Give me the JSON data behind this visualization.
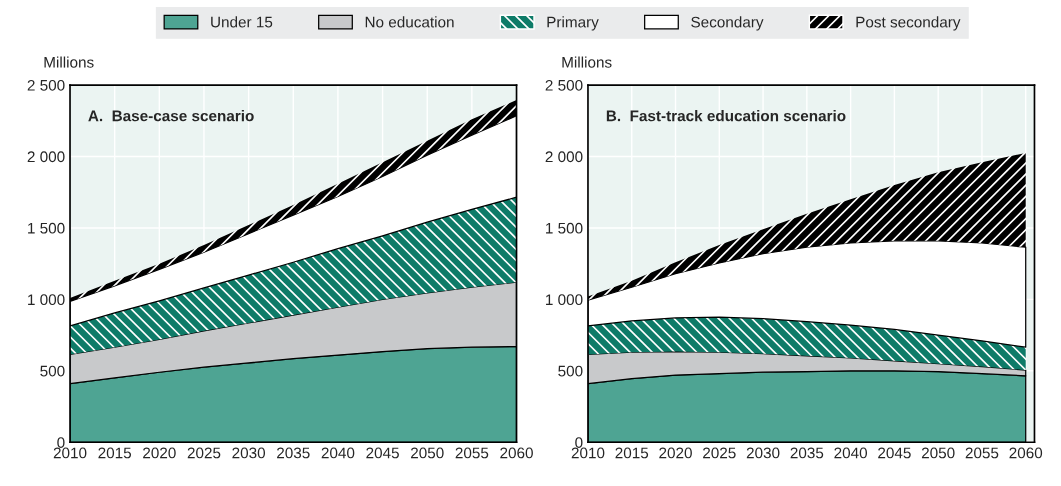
{
  "chart_data": [
    {
      "type": "area",
      "stacked": true,
      "title": "A.  Base-case scenario",
      "ylabel": "Millions",
      "legend": "top",
      "grid": true,
      "x": [
        2010,
        2015,
        2020,
        2025,
        2030,
        2035,
        2040,
        2045,
        2050,
        2055,
        2060
      ],
      "xlim": [
        2010,
        2060
      ],
      "xticks": [
        2010,
        2015,
        2020,
        2025,
        2030,
        2035,
        2040,
        2045,
        2050,
        2055,
        2060
      ],
      "ylim": [
        0,
        2500
      ],
      "yticks": [
        0,
        500,
        {
          "value": 1000,
          "label": "1 000"
        },
        {
          "value": 1500,
          "label": "1 500"
        },
        {
          "value": 2000,
          "label": "2 000"
        },
        {
          "value": 2500,
          "label": "2 500"
        }
      ],
      "series": [
        {
          "name": "Under 15",
          "color": "#4ea493",
          "values": [
            410,
            450,
            490,
            525,
            555,
            585,
            610,
            635,
            655,
            665,
            670
          ]
        },
        {
          "name": "No education",
          "color": "#c8c9cb",
          "values": [
            205,
            215,
            230,
            255,
            280,
            305,
            335,
            365,
            390,
            420,
            450
          ]
        },
        {
          "name": "Primary",
          "color": "#0e7b68",
          "values": [
            200,
            240,
            270,
            300,
            335,
            370,
            410,
            445,
            495,
            545,
            595
          ]
        },
        {
          "name": "Secondary",
          "color": "#ffffff",
          "values": [
            170,
            190,
            220,
            250,
            290,
            330,
            365,
            415,
            470,
            520,
            570
          ]
        },
        {
          "name": "Post secondary",
          "color": "#000000",
          "values": [
            25,
            35,
            40,
            50,
            60,
            70,
            90,
            100,
            100,
            110,
            110
          ]
        }
      ]
    },
    {
      "type": "area",
      "stacked": true,
      "title": "B.  Fast-track education scenario",
      "ylabel": "Millions",
      "grid": true,
      "x": [
        2010,
        2015,
        2020,
        2025,
        2030,
        2035,
        2040,
        2045,
        2050,
        2055,
        2060
      ],
      "xlim": [
        2010,
        2061
      ],
      "xticks": [
        2010,
        2015,
        2020,
        2025,
        2030,
        2035,
        2040,
        2045,
        2050,
        2055,
        2060
      ],
      "ylim": [
        0,
        2500
      ],
      "yticks": [
        0,
        500,
        {
          "value": 1000,
          "label": "1 000"
        },
        {
          "value": 1500,
          "label": "1 500"
        },
        {
          "value": 2000,
          "label": "2 000"
        },
        {
          "value": 2500,
          "label": "2 500"
        }
      ],
      "series": [
        {
          "name": "Under 15",
          "color": "#4ea493",
          "values": [
            410,
            445,
            470,
            480,
            490,
            495,
            500,
            500,
            495,
            480,
            465
          ]
        },
        {
          "name": "No education",
          "color": "#c8c9cb",
          "values": [
            205,
            185,
            165,
            150,
            130,
            110,
            90,
            70,
            55,
            50,
            40
          ]
        },
        {
          "name": "Primary",
          "color": "#0e7b68",
          "values": [
            200,
            220,
            235,
            245,
            245,
            240,
            230,
            220,
            200,
            180,
            160
          ]
        },
        {
          "name": "Secondary",
          "color": "#ffffff",
          "values": [
            180,
            235,
            310,
            380,
            455,
            520,
            575,
            620,
            660,
            685,
            700
          ]
        },
        {
          "name": "Post secondary",
          "color": "#000000",
          "values": [
            25,
            45,
            80,
            125,
            170,
            235,
            305,
            390,
            480,
            565,
            660
          ]
        }
      ]
    }
  ]
}
